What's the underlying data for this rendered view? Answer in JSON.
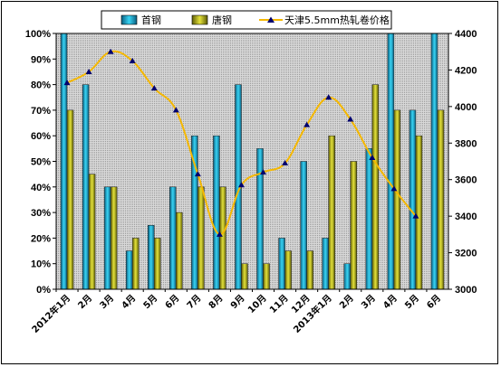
{
  "chart_data": {
    "type": "bar",
    "categories": [
      "2012年1月",
      "2月",
      "3月",
      "4月",
      "5月",
      "6月",
      "7月",
      "8月",
      "9月",
      "10月",
      "11月",
      "12月",
      "2013年1月",
      "2月",
      "3月",
      "4月",
      "5月",
      "6月"
    ],
    "series": [
      {
        "name": "首钢",
        "axis": "left",
        "kind": "bar",
        "color": "#19a7c9",
        "values": [
          100,
          80,
          40,
          15,
          25,
          40,
          60,
          60,
          80,
          55,
          20,
          50,
          20,
          10,
          55,
          100,
          70,
          100
        ]
      },
      {
        "name": "唐钢",
        "axis": "left",
        "kind": "bar",
        "color": "#a7a61a",
        "values": [
          70,
          45,
          40,
          20,
          20,
          30,
          40,
          40,
          10,
          10,
          15,
          15,
          60,
          50,
          80,
          70,
          60,
          70
        ]
      },
      {
        "name": "天津5.5mm热轧卷价格",
        "axis": "right",
        "kind": "line",
        "color": "#f5b800",
        "marker": "triangle",
        "marker_color": "#00006e",
        "values": [
          4130,
          4190,
          4300,
          4250,
          4100,
          3980,
          3630,
          3300,
          3570,
          3640,
          3690,
          3900,
          4050,
          3930,
          3720,
          3550,
          3400,
          null
        ]
      }
    ],
    "y_left": {
      "min": 0,
      "max": 100,
      "step": 10,
      "ticks": [
        "0%",
        "10%",
        "20%",
        "30%",
        "40%",
        "50%",
        "60%",
        "70%",
        "80%",
        "90%",
        "100%"
      ]
    },
    "y_right": {
      "min": 3000,
      "max": 4400,
      "step": 200,
      "ticks": [
        "3000",
        "3200",
        "3400",
        "3600",
        "3800",
        "4000",
        "4200",
        "4400"
      ]
    },
    "legend_position": "top",
    "grid": false,
    "plot_background": "#c0c0c0"
  }
}
